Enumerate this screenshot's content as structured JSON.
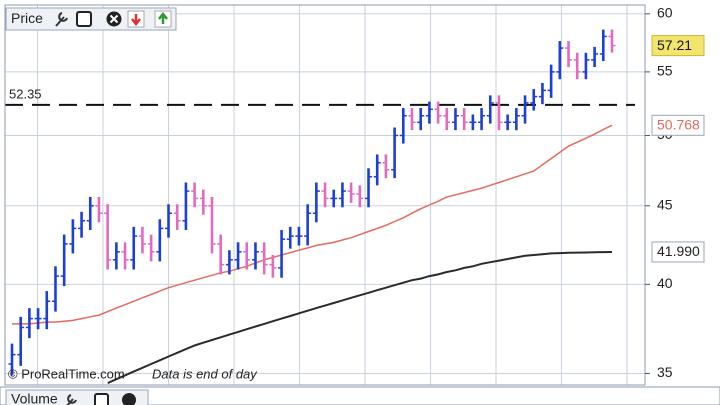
{
  "toolbar": {
    "title": "Price"
  },
  "chart_data": {
    "type": "ohlc",
    "categories": [
      null,
      null,
      null,
      null,
      null,
      null,
      null,
      null,
      null,
      null,
      null,
      null,
      null,
      null,
      null,
      null,
      null,
      null,
      null,
      null,
      null,
      null,
      null,
      null,
      null,
      null,
      null,
      null,
      null,
      null,
      null,
      null,
      null,
      null,
      null,
      null,
      null,
      null,
      null,
      null,
      null,
      null,
      null,
      null,
      null,
      null,
      null,
      null,
      null,
      null,
      null,
      null,
      null,
      null,
      null,
      null,
      null,
      null,
      null,
      null,
      null,
      null,
      null,
      null,
      null,
      null,
      null,
      null,
      null,
      null
    ],
    "open": [
      35.5,
      36,
      37.5,
      38,
      38,
      39,
      40.5,
      42.5,
      43.5,
      44,
      45,
      44.5,
      41.5,
      42,
      41.5,
      43,
      42.5,
      42,
      43.5,
      44.5,
      44,
      46,
      45.5,
      45,
      42.5,
      41.2,
      41.5,
      42,
      41.5,
      42,
      41.2,
      41,
      42.8,
      43,
      43,
      44.5,
      46,
      45.5,
      45.5,
      46,
      45.8,
      45.5,
      47,
      48,
      47.5,
      50,
      51.5,
      51,
      51.5,
      52,
      51.5,
      51,
      51.5,
      51,
      51,
      51.5,
      52.5,
      51,
      51,
      51.5,
      52.5,
      53,
      53.5,
      55,
      57,
      56,
      55,
      56,
      56.5,
      58
    ],
    "high": [
      36.6,
      38.1,
      38.6,
      38.6,
      39.6,
      41.1,
      43.1,
      44.1,
      44.6,
      45.6,
      45.6,
      45.1,
      42.6,
      42.6,
      43.6,
      43.6,
      43.1,
      44.1,
      45.1,
      45.1,
      46.6,
      46.6,
      46.1,
      45.6,
      43.1,
      42.1,
      42.6,
      42.6,
      42.6,
      42.6,
      41.8,
      43.4,
      43.6,
      43.6,
      45.1,
      46.6,
      46.6,
      46.1,
      46.6,
      46.6,
      46.4,
      47.6,
      48.6,
      48.6,
      50.6,
      52.1,
      52.1,
      52.1,
      52.6,
      52.6,
      52.1,
      52.1,
      52.1,
      51.6,
      52.1,
      53.1,
      53.1,
      51.6,
      52.1,
      53.1,
      53.6,
      54.1,
      55.6,
      57.6,
      57.6,
      56.6,
      56.6,
      57.1,
      58.6,
      58.6
    ],
    "low": [
      34.9,
      35.4,
      36.9,
      37.4,
      37.4,
      38.4,
      39.9,
      41.9,
      42.9,
      43.4,
      43.9,
      40.9,
      40.9,
      40.9,
      40.9,
      41.9,
      41.4,
      41.4,
      42.9,
      43.4,
      43.4,
      44.9,
      44.4,
      41.9,
      40.6,
      40.6,
      40.9,
      40.9,
      40.9,
      40.6,
      40.4,
      40.4,
      42.2,
      42.4,
      42.4,
      43.9,
      44.9,
      44.9,
      44.9,
      45.2,
      44.9,
      44.9,
      46.4,
      46.9,
      46.9,
      49.4,
      50.4,
      50.4,
      50.9,
      50.9,
      50.4,
      50.4,
      50.4,
      50.4,
      50.4,
      50.9,
      50.4,
      50.4,
      50.4,
      50.9,
      51.9,
      52.4,
      52.9,
      54.4,
      55.4,
      54.4,
      54.4,
      55.4,
      55.9,
      56.61
    ],
    "close": [
      36,
      37.5,
      38,
      38,
      39,
      40.5,
      42.5,
      43.5,
      44,
      45,
      44.5,
      41.5,
      42,
      41.5,
      43,
      42.5,
      42,
      43.5,
      44.5,
      44,
      46,
      45.5,
      45,
      42.5,
      41.2,
      41.5,
      42,
      41.5,
      42,
      41.2,
      41,
      42.8,
      43,
      43,
      44.5,
      46,
      45.5,
      45.5,
      46,
      45.8,
      45.5,
      47,
      48,
      47.5,
      50,
      51.5,
      51,
      51.5,
      52,
      51.5,
      51,
      51.5,
      51,
      51,
      51.5,
      52.5,
      51,
      51,
      51.5,
      52.5,
      53,
      53.5,
      55,
      57,
      56,
      55,
      56,
      56.5,
      58,
      57.21
    ],
    "up_color": "#1c3fd6",
    "down_color": "#e36bbd",
    "last_close_color": "#f3e46a",
    "moving_averages": [
      {
        "color": "#e46a5e",
        "value_label": "50.768",
        "values": [
          37.7,
          37.7,
          37.7,
          37.75,
          37.8,
          37.8,
          37.85,
          37.9,
          38.0,
          38.1,
          38.2,
          38.4,
          38.6,
          38.8,
          39.0,
          39.2,
          39.4,
          39.6,
          39.8,
          39.95,
          40.1,
          40.25,
          40.4,
          40.55,
          40.7,
          40.8,
          40.95,
          41.1,
          41.3,
          41.5,
          41.65,
          41.8,
          41.95,
          42.1,
          42.25,
          42.4,
          42.5,
          42.6,
          42.75,
          42.9,
          43.1,
          43.3,
          43.5,
          43.7,
          43.95,
          44.2,
          44.5,
          44.8,
          45.05,
          45.3,
          45.6,
          45.75,
          45.9,
          46.05,
          46.2,
          46.4,
          46.6,
          46.8,
          47.0,
          47.2,
          47.4,
          47.85,
          48.3,
          48.75,
          49.2,
          49.5,
          49.8,
          50.1,
          50.45,
          50.768
        ]
      },
      {
        "color": "#2b2b2b",
        "value_label": "41.990",
        "values": [
          null,
          null,
          null,
          null,
          null,
          null,
          null,
          null,
          null,
          null,
          null,
          34.5,
          34.7,
          34.9,
          35.1,
          35.3,
          35.5,
          35.7,
          35.9,
          36.1,
          36.3,
          36.5,
          36.65,
          36.8,
          36.95,
          37.1,
          37.25,
          37.4,
          37.55,
          37.7,
          37.85,
          38.0,
          38.15,
          38.3,
          38.45,
          38.6,
          38.75,
          38.9,
          39.05,
          39.2,
          39.35,
          39.5,
          39.65,
          39.8,
          39.95,
          40.1,
          40.25,
          40.35,
          40.5,
          40.6,
          40.75,
          40.85,
          41.0,
          41.1,
          41.25,
          41.35,
          41.45,
          41.55,
          41.65,
          41.75,
          41.8,
          41.85,
          41.9,
          41.92,
          41.94,
          41.95,
          41.96,
          41.97,
          41.98,
          41.99
        ]
      }
    ],
    "reference_line": {
      "value": 52.35
    },
    "ylim": [
      34.4,
      60.8
    ],
    "yticks": [
      35,
      40,
      45,
      50,
      55,
      60
    ],
    "log_scale": true,
    "grid": true,
    "source": "© ProRealTime.com",
    "note": "Data is end of day"
  },
  "volume_panel": {
    "title": "Volume"
  }
}
